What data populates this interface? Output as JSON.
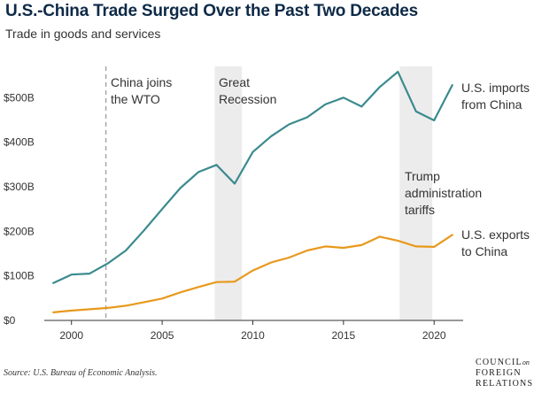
{
  "header": {
    "title": "U.S.-China Trade Surged Over the Past Two Decades",
    "subtitle": "Trade in goods and services"
  },
  "source": "Source: U.S. Bureau of Economic Analysis.",
  "logo": {
    "line1": "COUNCIL",
    "line1_suffix": "on",
    "line2": "FOREIGN",
    "line3": "RELATIONS"
  },
  "colors": {
    "imports": "#3a8a8e",
    "exports": "#e8991c",
    "shade": "#ececec",
    "marker": "#999999"
  },
  "chart_data": {
    "type": "line",
    "title": "U.S.-China Trade Surged Over the Past Two Decades",
    "subtitle": "Trade in goods and services",
    "xlim": [
      1998.5,
      2021.6
    ],
    "ylim": [
      0,
      600
    ],
    "y_ticks": [
      0,
      100,
      200,
      300,
      400,
      500
    ],
    "y_tick_labels": [
      "$0",
      "$100B",
      "$200B",
      "$300B",
      "$400B",
      "$500B"
    ],
    "x_ticks": [
      2000,
      2005,
      2010,
      2015,
      2020
    ],
    "x_tick_labels": [
      "2000",
      "2005",
      "2010",
      "2015",
      "2020"
    ],
    "grid": false,
    "x": [
      1999,
      2000,
      2001,
      2002,
      2003,
      2004,
      2005,
      2006,
      2007,
      2008,
      2009,
      2010,
      2011,
      2012,
      2013,
      2014,
      2015,
      2016,
      2017,
      2018,
      2019,
      2020,
      2021
    ],
    "series": [
      {
        "name": "U.S. imports from China",
        "label_lines": [
          "U.S. imports",
          "from China"
        ],
        "color": "#3a8a8e",
        "values": [
          84,
          103,
          105,
          128,
          157,
          202,
          250,
          297,
          333,
          349,
          307,
          378,
          413,
          440,
          456,
          485,
          500,
          480,
          524,
          558,
          469,
          449,
          528
        ]
      },
      {
        "name": "U.S. exports to China",
        "label_lines": [
          "U.S. exports",
          "to China"
        ],
        "color": "#e8991c",
        "values": [
          18,
          22,
          25,
          28,
          33,
          41,
          49,
          63,
          75,
          86,
          87,
          112,
          130,
          141,
          157,
          166,
          163,
          169,
          188,
          179,
          166,
          165,
          192
        ]
      }
    ],
    "annotations": [
      {
        "type": "vline",
        "x": 2001.9,
        "label_lines": [
          "China joins",
          "the WTO"
        ]
      },
      {
        "type": "band",
        "x0": 2007.9,
        "x1": 2009.4,
        "label_lines": [
          "Great",
          "Recession"
        ]
      },
      {
        "type": "band",
        "x0": 2018.1,
        "x1": 2019.9,
        "label_lines": [
          "Trump",
          "administration",
          "tariffs"
        ]
      }
    ]
  }
}
